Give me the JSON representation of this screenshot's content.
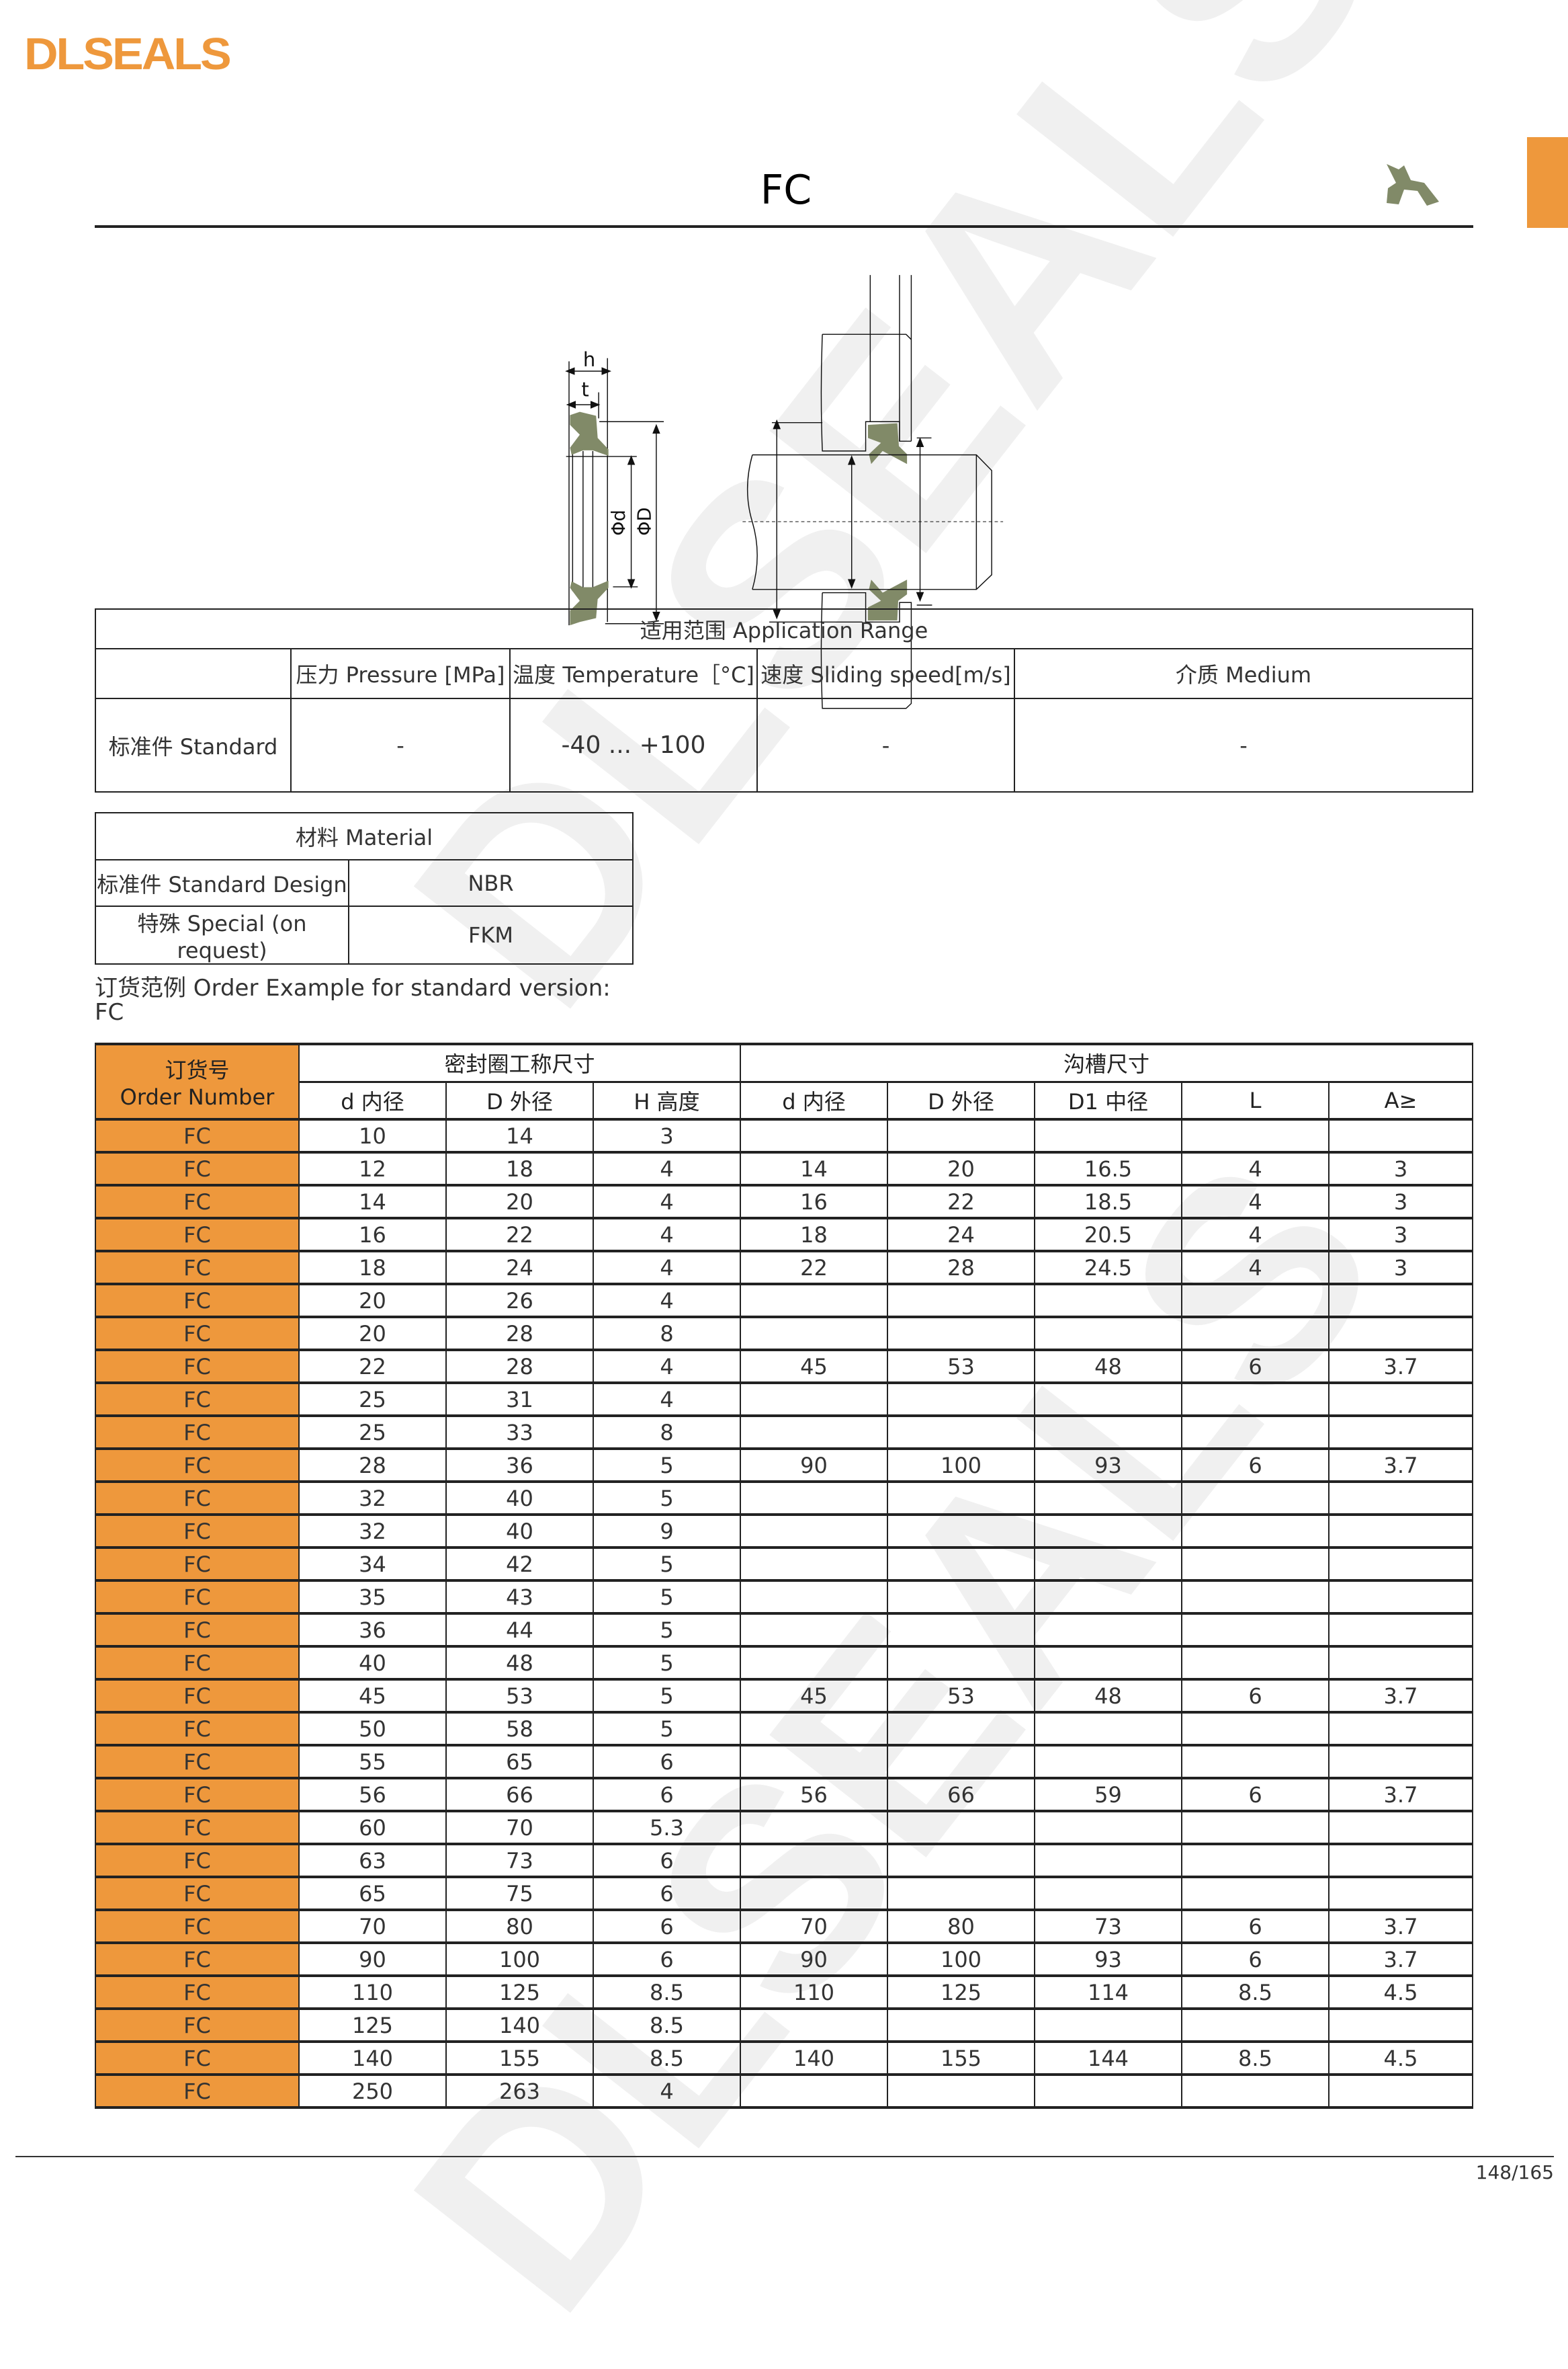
{
  "brand": {
    "logo": "DLSEALS",
    "watermark": "DLSEALS",
    "accent": "#ee983c",
    "seal_color": "#818a68"
  },
  "title": "FC",
  "icons": [
    "seal-profile-icon"
  ],
  "drawing": {
    "labels": {
      "h": "h",
      "t": "t",
      "d": "Φd",
      "D": "ΦD"
    }
  },
  "application": {
    "header": "适用范围 Application Range",
    "columns": [
      "",
      "压力 Pressure [MPa]",
      "温度 Temperature［°C]",
      "速度 Sliding speed[m/s]",
      "介质 Medium"
    ],
    "row": [
      "标准件 Standard",
      "-",
      "-40 ... +100",
      "-",
      "-"
    ]
  },
  "material": {
    "header": "材料 Material",
    "rows": [
      [
        "标准件 Standard Design",
        "NBR"
      ],
      [
        "特殊 Special (on request)",
        "FKM"
      ]
    ]
  },
  "order_example": {
    "label": "订货范例 Order Example for standard version:",
    "value": "FC"
  },
  "order_table": {
    "order_header_cn": "订货号",
    "order_header_en": "Order Number",
    "group1": "密封圈工称尺寸",
    "group2": "沟槽尺寸",
    "columns": [
      "d 内径",
      "D 外径",
      "H 高度",
      "d 内径",
      "D 外径",
      "D1 中径",
      "L",
      "A≥"
    ],
    "rows": [
      [
        "FC",
        "10",
        "14",
        "3",
        "",
        "",
        "",
        "",
        ""
      ],
      [
        "FC",
        "12",
        "18",
        "4",
        "14",
        "20",
        "16.5",
        "4",
        "3"
      ],
      [
        "FC",
        "14",
        "20",
        "4",
        "16",
        "22",
        "18.5",
        "4",
        "3"
      ],
      [
        "FC",
        "16",
        "22",
        "4",
        "18",
        "24",
        "20.5",
        "4",
        "3"
      ],
      [
        "FC",
        "18",
        "24",
        "4",
        "22",
        "28",
        "24.5",
        "4",
        "3"
      ],
      [
        "FC",
        "20",
        "26",
        "4",
        "",
        "",
        "",
        "",
        ""
      ],
      [
        "FC",
        "20",
        "28",
        "8",
        "",
        "",
        "",
        "",
        ""
      ],
      [
        "FC",
        "22",
        "28",
        "4",
        "45",
        "53",
        "48",
        "6",
        "3.7"
      ],
      [
        "FC",
        "25",
        "31",
        "4",
        "",
        "",
        "",
        "",
        ""
      ],
      [
        "FC",
        "25",
        "33",
        "8",
        "",
        "",
        "",
        "",
        ""
      ],
      [
        "FC",
        "28",
        "36",
        "5",
        "90",
        "100",
        "93",
        "6",
        "3.7"
      ],
      [
        "FC",
        "32",
        "40",
        "5",
        "",
        "",
        "",
        "",
        ""
      ],
      [
        "FC",
        "32",
        "40",
        "9",
        "",
        "",
        "",
        "",
        ""
      ],
      [
        "FC",
        "34",
        "42",
        "5",
        "",
        "",
        "",
        "",
        ""
      ],
      [
        "FC",
        "35",
        "43",
        "5",
        "",
        "",
        "",
        "",
        ""
      ],
      [
        "FC",
        "36",
        "44",
        "5",
        "",
        "",
        "",
        "",
        ""
      ],
      [
        "FC",
        "40",
        "48",
        "5",
        "",
        "",
        "",
        "",
        ""
      ],
      [
        "FC",
        "45",
        "53",
        "5",
        "45",
        "53",
        "48",
        "6",
        "3.7"
      ],
      [
        "FC",
        "50",
        "58",
        "5",
        "",
        "",
        "",
        "",
        ""
      ],
      [
        "FC",
        "55",
        "65",
        "6",
        "",
        "",
        "",
        "",
        ""
      ],
      [
        "FC",
        "56",
        "66",
        "6",
        "56",
        "66",
        "59",
        "6",
        "3.7"
      ],
      [
        "FC",
        "60",
        "70",
        "5.3",
        "",
        "",
        "",
        "",
        ""
      ],
      [
        "FC",
        "63",
        "73",
        "6",
        "",
        "",
        "",
        "",
        ""
      ],
      [
        "FC",
        "65",
        "75",
        "6",
        "",
        "",
        "",
        "",
        ""
      ],
      [
        "FC",
        "70",
        "80",
        "6",
        "70",
        "80",
        "73",
        "6",
        "3.7"
      ],
      [
        "FC",
        "90",
        "100",
        "6",
        "90",
        "100",
        "93",
        "6",
        "3.7"
      ],
      [
        "FC",
        "110",
        "125",
        "8.5",
        "110",
        "125",
        "114",
        "8.5",
        "4.5"
      ],
      [
        "FC",
        "125",
        "140",
        "8.5",
        "",
        "",
        "",
        "",
        ""
      ],
      [
        "FC",
        "140",
        "155",
        "8.5",
        "140",
        "155",
        "144",
        "8.5",
        "4.5"
      ],
      [
        "FC",
        "250",
        "263",
        "4",
        "",
        "",
        "",
        "",
        ""
      ]
    ]
  },
  "footer": {
    "page": "148/165"
  }
}
